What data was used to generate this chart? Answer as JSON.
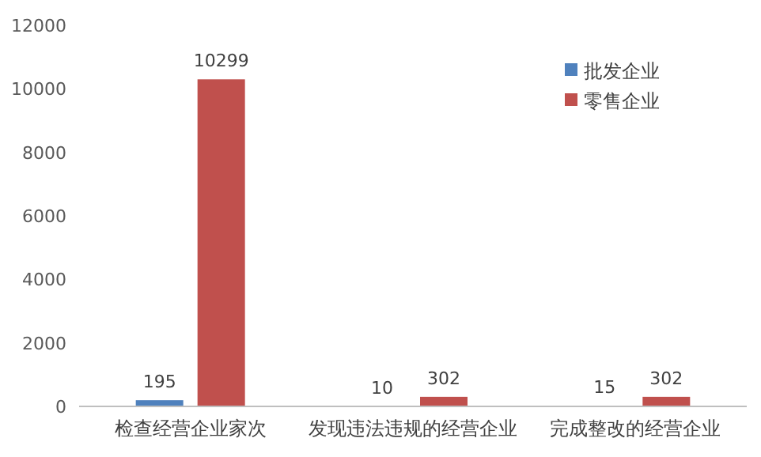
{
  "chart_data": {
    "type": "bar",
    "categories": [
      "检查经营企业家次",
      "发现违法违规的经营企业",
      "完成整改的经营企业"
    ],
    "series": [
      {
        "name": "批发企业",
        "color": "#4f81bd",
        "values": [
          195,
          10,
          15
        ]
      },
      {
        "name": "零售企业",
        "color": "#c0504d",
        "values": [
          10299,
          302,
          302
        ]
      }
    ],
    "ylim": [
      0,
      12000
    ],
    "yticks": [
      0,
      2000,
      4000,
      6000,
      8000,
      10000,
      12000
    ],
    "data_labels": true,
    "legend": "top right",
    "grid": false
  }
}
